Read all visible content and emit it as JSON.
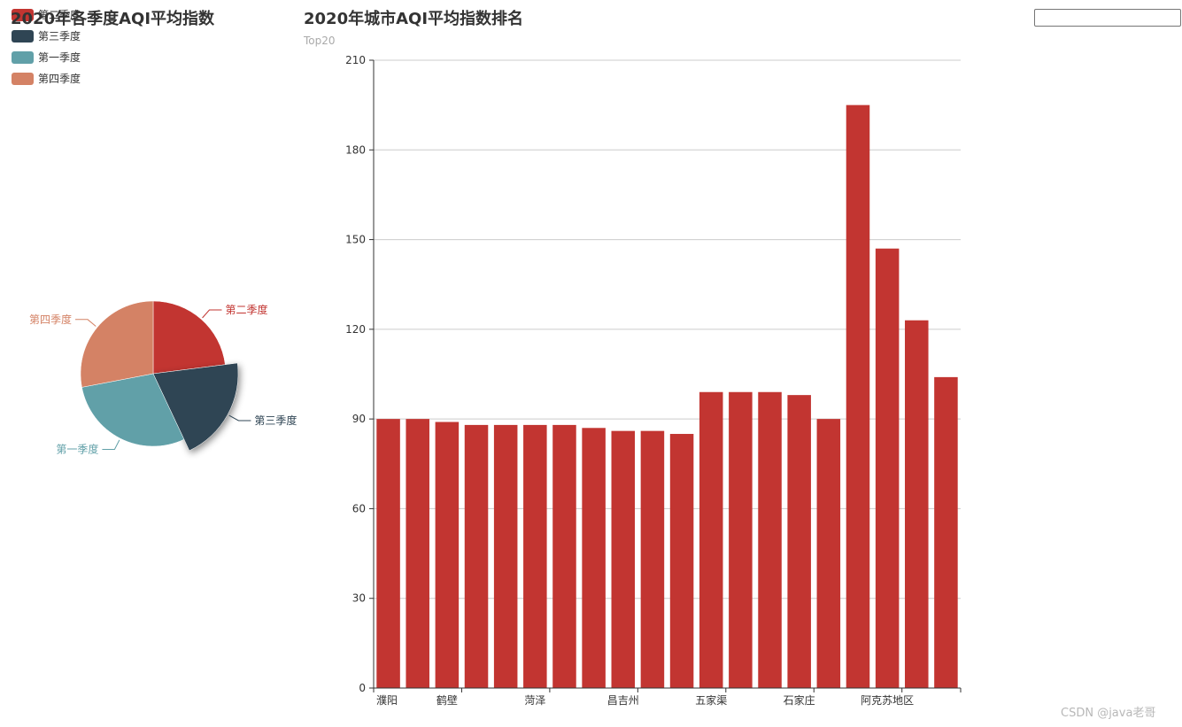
{
  "search": {
    "placeholder": "",
    "value": ""
  },
  "watermark": "CSDN @java老哥",
  "chart_data": [
    {
      "type": "pie",
      "title": "2020年各季度AQI平均指数",
      "legend": [
        "第二季度",
        "第三季度",
        "第一季度",
        "第四季度"
      ],
      "legend_placement": "top-left",
      "slices": [
        {
          "name": "第二季度",
          "value": 23,
          "color": "#c23531",
          "highlighted": false
        },
        {
          "name": "第三季度",
          "value": 20,
          "color": "#2f4554",
          "highlighted": true
        },
        {
          "name": "第一季度",
          "value": 29,
          "color": "#61a0a8",
          "highlighted": false
        },
        {
          "name": "第四季度",
          "value": 28,
          "color": "#d48265",
          "highlighted": false
        }
      ]
    },
    {
      "type": "bar",
      "title": "2020年城市AQI平均指数排名",
      "subtitle": "Top20",
      "color": "#c23531",
      "ylim": [
        0,
        210
      ],
      "yticks": [
        0,
        30,
        60,
        90,
        120,
        150,
        180,
        210
      ],
      "grid": true,
      "categories": [
        "濮阳",
        "",
        "鹤壁",
        "",
        "",
        "菏泽",
        "",
        "",
        "昌吉州",
        "",
        "",
        "五家渠",
        "",
        "",
        "石家庄",
        "",
        "",
        "阿克苏地区",
        "",
        ""
      ],
      "values": [
        90,
        90,
        89,
        88,
        88,
        88,
        88,
        87,
        86,
        86,
        85,
        99,
        99,
        99,
        98,
        90,
        195,
        147,
        123,
        104
      ]
    }
  ]
}
